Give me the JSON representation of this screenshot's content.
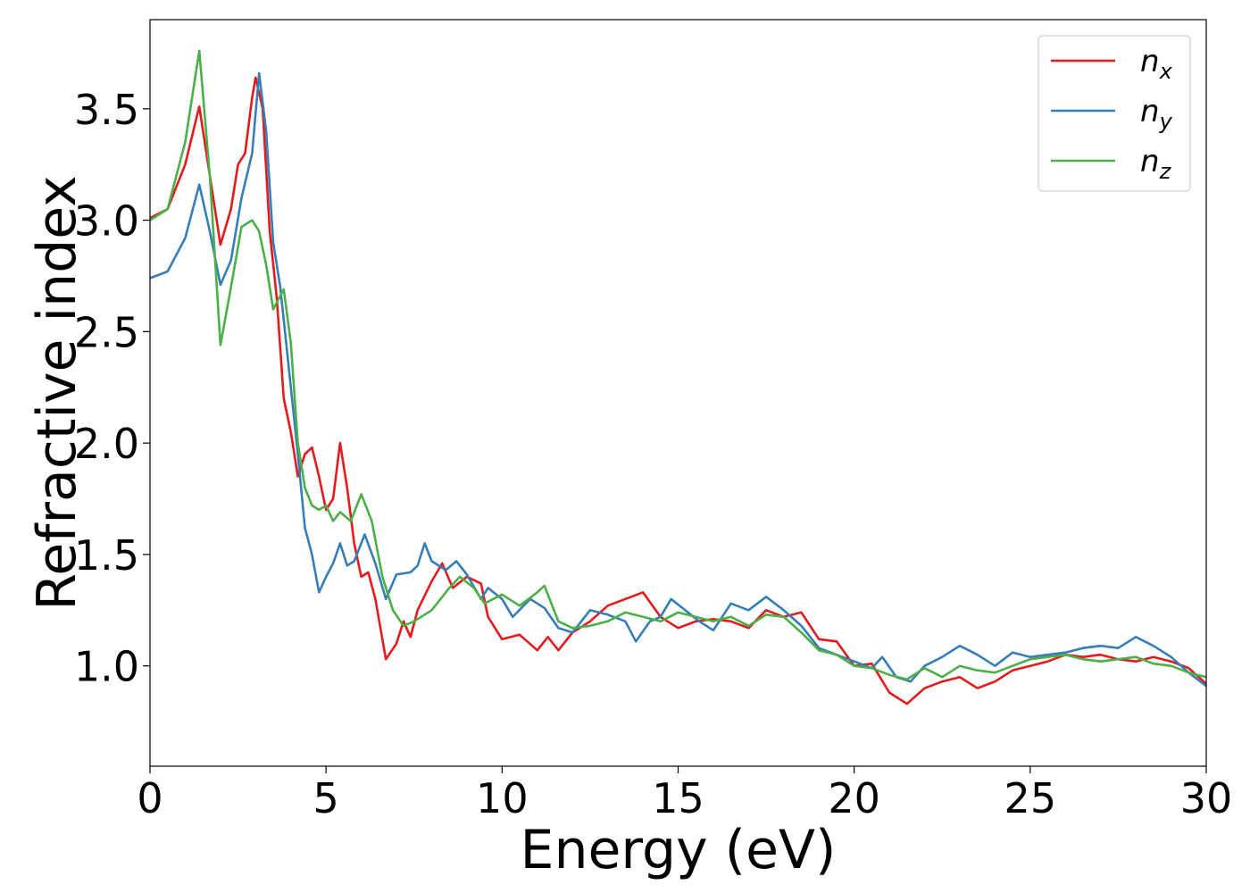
{
  "chart_data": {
    "type": "line",
    "title": "",
    "xlabel": "Energy (eV)",
    "ylabel": "Refractive index",
    "xlim": [
      0,
      30
    ],
    "ylim": [
      0.55,
      3.9
    ],
    "xticks": [
      0,
      5,
      10,
      15,
      20,
      25,
      30
    ],
    "xtick_labels": [
      "0",
      "5",
      "10",
      "15",
      "20",
      "25",
      "30"
    ],
    "yticks": [
      1.0,
      1.5,
      2.0,
      2.5,
      3.0,
      3.5
    ],
    "ytick_labels": [
      "1.0",
      "1.5",
      "2.0",
      "2.5",
      "3.0",
      "3.5"
    ],
    "grid": false,
    "legend_position": "top-right",
    "series": [
      {
        "name": "n_x",
        "base": "n",
        "sub": "x",
        "color": "#e41a1c",
        "points": [
          [
            0,
            3.01
          ],
          [
            0.5,
            3.05
          ],
          [
            1.0,
            3.25
          ],
          [
            1.4,
            3.51
          ],
          [
            1.7,
            3.2
          ],
          [
            2.0,
            2.89
          ],
          [
            2.3,
            3.05
          ],
          [
            2.5,
            3.25
          ],
          [
            2.7,
            3.3
          ],
          [
            2.9,
            3.55
          ],
          [
            3.0,
            3.64
          ],
          [
            3.2,
            3.5
          ],
          [
            3.4,
            2.95
          ],
          [
            3.6,
            2.65
          ],
          [
            3.8,
            2.2
          ],
          [
            4.0,
            2.05
          ],
          [
            4.2,
            1.85
          ],
          [
            4.4,
            1.95
          ],
          [
            4.6,
            1.98
          ],
          [
            4.8,
            1.85
          ],
          [
            5.0,
            1.7
          ],
          [
            5.2,
            1.75
          ],
          [
            5.4,
            2.0
          ],
          [
            5.6,
            1.8
          ],
          [
            5.8,
            1.55
          ],
          [
            6.0,
            1.4
          ],
          [
            6.2,
            1.42
          ],
          [
            6.4,
            1.3
          ],
          [
            6.7,
            1.03
          ],
          [
            7.0,
            1.1
          ],
          [
            7.2,
            1.2
          ],
          [
            7.4,
            1.13
          ],
          [
            7.6,
            1.25
          ],
          [
            8.0,
            1.38
          ],
          [
            8.3,
            1.46
          ],
          [
            8.6,
            1.35
          ],
          [
            9.0,
            1.4
          ],
          [
            9.4,
            1.37
          ],
          [
            9.6,
            1.22
          ],
          [
            10.0,
            1.12
          ],
          [
            10.5,
            1.14
          ],
          [
            11.0,
            1.07
          ],
          [
            11.3,
            1.13
          ],
          [
            11.6,
            1.07
          ],
          [
            12.0,
            1.15
          ],
          [
            12.5,
            1.2
          ],
          [
            13.0,
            1.27
          ],
          [
            13.5,
            1.3
          ],
          [
            14.0,
            1.33
          ],
          [
            14.5,
            1.22
          ],
          [
            15.0,
            1.17
          ],
          [
            15.5,
            1.2
          ],
          [
            16.0,
            1.21
          ],
          [
            16.5,
            1.2
          ],
          [
            17.0,
            1.17
          ],
          [
            17.5,
            1.25
          ],
          [
            18.0,
            1.22
          ],
          [
            18.5,
            1.24
          ],
          [
            19.0,
            1.12
          ],
          [
            19.5,
            1.11
          ],
          [
            20.0,
            1.0
          ],
          [
            20.5,
            1.01
          ],
          [
            21.0,
            0.88
          ],
          [
            21.5,
            0.83
          ],
          [
            22.0,
            0.9
          ],
          [
            22.5,
            0.93
          ],
          [
            23.0,
            0.95
          ],
          [
            23.5,
            0.9
          ],
          [
            24.0,
            0.93
          ],
          [
            24.5,
            0.98
          ],
          [
            25.0,
            1.0
          ],
          [
            25.5,
            1.02
          ],
          [
            26.0,
            1.05
          ],
          [
            26.5,
            1.04
          ],
          [
            27.0,
            1.05
          ],
          [
            27.5,
            1.03
          ],
          [
            28.0,
            1.02
          ],
          [
            28.5,
            1.04
          ],
          [
            29.0,
            1.02
          ],
          [
            29.5,
            0.99
          ],
          [
            30.0,
            0.92
          ]
        ]
      },
      {
        "name": "n_y",
        "base": "n",
        "sub": "y",
        "color": "#377eb8",
        "points": [
          [
            0,
            2.74
          ],
          [
            0.5,
            2.77
          ],
          [
            1.0,
            2.92
          ],
          [
            1.4,
            3.16
          ],
          [
            1.7,
            2.95
          ],
          [
            2.0,
            2.71
          ],
          [
            2.3,
            2.82
          ],
          [
            2.6,
            3.1
          ],
          [
            2.9,
            3.3
          ],
          [
            3.1,
            3.66
          ],
          [
            3.3,
            3.4
          ],
          [
            3.5,
            2.9
          ],
          [
            3.7,
            2.7
          ],
          [
            3.9,
            2.4
          ],
          [
            4.2,
            1.95
          ],
          [
            4.4,
            1.62
          ],
          [
            4.6,
            1.5
          ],
          [
            4.8,
            1.33
          ],
          [
            5.0,
            1.4
          ],
          [
            5.2,
            1.46
          ],
          [
            5.4,
            1.55
          ],
          [
            5.6,
            1.45
          ],
          [
            5.8,
            1.47
          ],
          [
            6.1,
            1.59
          ],
          [
            6.4,
            1.46
          ],
          [
            6.7,
            1.3
          ],
          [
            7.0,
            1.41
          ],
          [
            7.4,
            1.42
          ],
          [
            7.6,
            1.45
          ],
          [
            7.8,
            1.55
          ],
          [
            8.0,
            1.47
          ],
          [
            8.4,
            1.43
          ],
          [
            8.7,
            1.47
          ],
          [
            9.0,
            1.41
          ],
          [
            9.4,
            1.3
          ],
          [
            9.6,
            1.35
          ],
          [
            10.0,
            1.3
          ],
          [
            10.3,
            1.22
          ],
          [
            10.8,
            1.3
          ],
          [
            11.2,
            1.26
          ],
          [
            11.6,
            1.17
          ],
          [
            12.0,
            1.15
          ],
          [
            12.5,
            1.25
          ],
          [
            13.0,
            1.23
          ],
          [
            13.5,
            1.2
          ],
          [
            13.8,
            1.11
          ],
          [
            14.2,
            1.2
          ],
          [
            14.5,
            1.22
          ],
          [
            14.8,
            1.3
          ],
          [
            15.2,
            1.25
          ],
          [
            15.6,
            1.2
          ],
          [
            16.0,
            1.16
          ],
          [
            16.5,
            1.28
          ],
          [
            17.0,
            1.25
          ],
          [
            17.5,
            1.31
          ],
          [
            18.0,
            1.25
          ],
          [
            18.5,
            1.18
          ],
          [
            19.0,
            1.08
          ],
          [
            19.5,
            1.05
          ],
          [
            20.0,
            1.02
          ],
          [
            20.5,
            0.99
          ],
          [
            20.8,
            1.04
          ],
          [
            21.2,
            0.95
          ],
          [
            21.6,
            0.93
          ],
          [
            22.0,
            1.0
          ],
          [
            22.5,
            1.04
          ],
          [
            23.0,
            1.09
          ],
          [
            23.5,
            1.05
          ],
          [
            24.0,
            1.0
          ],
          [
            24.5,
            1.06
          ],
          [
            25.0,
            1.04
          ],
          [
            25.5,
            1.05
          ],
          [
            26.0,
            1.06
          ],
          [
            26.5,
            1.08
          ],
          [
            27.0,
            1.09
          ],
          [
            27.5,
            1.08
          ],
          [
            28.0,
            1.13
          ],
          [
            28.5,
            1.09
          ],
          [
            29.0,
            1.04
          ],
          [
            29.5,
            0.97
          ],
          [
            30.0,
            0.91
          ]
        ]
      },
      {
        "name": "n_z",
        "base": "n",
        "sub": "z",
        "color": "#4daf4a",
        "points": [
          [
            0,
            3.0
          ],
          [
            0.5,
            3.05
          ],
          [
            1.0,
            3.35
          ],
          [
            1.4,
            3.76
          ],
          [
            1.7,
            3.2
          ],
          [
            2.0,
            2.44
          ],
          [
            2.3,
            2.7
          ],
          [
            2.6,
            2.97
          ],
          [
            2.9,
            3.0
          ],
          [
            3.1,
            2.95
          ],
          [
            3.3,
            2.8
          ],
          [
            3.5,
            2.6
          ],
          [
            3.8,
            2.69
          ],
          [
            4.0,
            2.45
          ],
          [
            4.2,
            2.0
          ],
          [
            4.4,
            1.8
          ],
          [
            4.6,
            1.72
          ],
          [
            4.8,
            1.7
          ],
          [
            5.0,
            1.72
          ],
          [
            5.2,
            1.65
          ],
          [
            5.4,
            1.69
          ],
          [
            5.7,
            1.65
          ],
          [
            6.0,
            1.77
          ],
          [
            6.3,
            1.65
          ],
          [
            6.6,
            1.4
          ],
          [
            6.9,
            1.25
          ],
          [
            7.2,
            1.18
          ],
          [
            7.5,
            1.2
          ],
          [
            8.0,
            1.25
          ],
          [
            8.5,
            1.35
          ],
          [
            8.8,
            1.4
          ],
          [
            9.2,
            1.35
          ],
          [
            9.5,
            1.28
          ],
          [
            10.0,
            1.32
          ],
          [
            10.5,
            1.27
          ],
          [
            11.0,
            1.33
          ],
          [
            11.2,
            1.36
          ],
          [
            11.6,
            1.2
          ],
          [
            12.0,
            1.17
          ],
          [
            12.5,
            1.18
          ],
          [
            13.0,
            1.2
          ],
          [
            13.5,
            1.24
          ],
          [
            14.0,
            1.22
          ],
          [
            14.5,
            1.2
          ],
          [
            15.0,
            1.24
          ],
          [
            15.5,
            1.22
          ],
          [
            16.0,
            1.2
          ],
          [
            16.5,
            1.22
          ],
          [
            17.0,
            1.18
          ],
          [
            17.5,
            1.23
          ],
          [
            18.0,
            1.22
          ],
          [
            18.5,
            1.15
          ],
          [
            19.0,
            1.07
          ],
          [
            19.5,
            1.05
          ],
          [
            20.0,
            1.0
          ],
          [
            20.5,
            0.99
          ],
          [
            21.0,
            0.96
          ],
          [
            21.5,
            0.94
          ],
          [
            22.0,
            0.99
          ],
          [
            22.5,
            0.95
          ],
          [
            23.0,
            1.0
          ],
          [
            23.5,
            0.98
          ],
          [
            24.0,
            0.97
          ],
          [
            24.5,
            1.0
          ],
          [
            25.0,
            1.03
          ],
          [
            25.5,
            1.04
          ],
          [
            26.0,
            1.05
          ],
          [
            26.5,
            1.03
          ],
          [
            27.0,
            1.02
          ],
          [
            27.5,
            1.03
          ],
          [
            28.0,
            1.04
          ],
          [
            28.5,
            1.01
          ],
          [
            29.0,
            1.0
          ],
          [
            29.5,
            0.97
          ],
          [
            30.0,
            0.95
          ]
        ]
      }
    ]
  }
}
